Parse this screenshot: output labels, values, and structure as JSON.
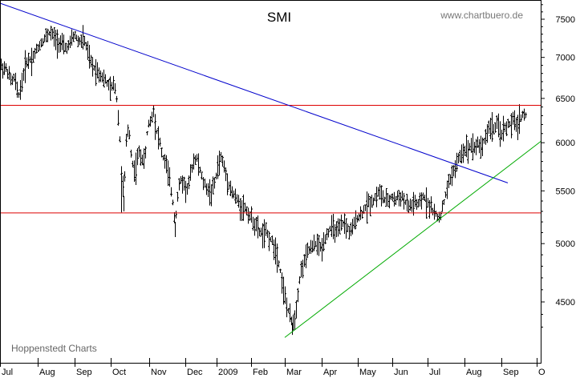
{
  "chart_data": {
    "type": "ohlc",
    "title": "SMI",
    "source_label": "www.chartbuero.de",
    "credit": "Hoppenstedt Charts",
    "y_scale": "log",
    "y_ticks": [
      4500,
      5000,
      5500,
      6000,
      6500,
      7000,
      7500
    ],
    "x_ticks": [
      "Jul",
      "Aug",
      "Sep",
      "Oct",
      "Nov",
      "Dec",
      "2009",
      "Feb",
      "Mar",
      "Apr",
      "May",
      "Jun",
      "Jul",
      "Aug",
      "Sep",
      "O"
    ],
    "grid": false,
    "colors": {
      "price": "#000000",
      "resistance": "#dd0000",
      "downtrend": "#0000cc",
      "uptrend": "#00aa00",
      "background": "#ffffff"
    },
    "horizontal_lines": [
      {
        "name": "upper-support",
        "value": 6420
      },
      {
        "name": "lower-support",
        "value": 5285
      }
    ],
    "trendlines": [
      {
        "name": "downtrend",
        "from": {
          "x": 0,
          "y": 7720
        },
        "to": {
          "x": 633,
          "y": 5580
        }
      },
      {
        "name": "uptrend",
        "from": {
          "x": 355,
          "y": 4220
        },
        "to": {
          "x": 675,
          "y": 6020
        }
      }
    ],
    "price_path": [
      [
        0,
        6900
      ],
      [
        8,
        6850
      ],
      [
        14,
        6700
      ],
      [
        18,
        6750
      ],
      [
        22,
        6520
      ],
      [
        26,
        6650
      ],
      [
        32,
        6950
      ],
      [
        40,
        7000
      ],
      [
        48,
        7150
      ],
      [
        55,
        7250
      ],
      [
        62,
        7330
      ],
      [
        68,
        7250
      ],
      [
        74,
        7200
      ],
      [
        80,
        7120
      ],
      [
        86,
        7150
      ],
      [
        92,
        7300
      ],
      [
        98,
        7200
      ],
      [
        104,
        7250
      ],
      [
        108,
        7100
      ],
      [
        114,
        6900
      ],
      [
        120,
        6850
      ],
      [
        126,
        6780
      ],
      [
        132,
        6700
      ],
      [
        138,
        6600
      ],
      [
        142,
        6700
      ],
      [
        145,
        6500
      ],
      [
        148,
        6200
      ],
      [
        151,
        5700
      ],
      [
        154,
        5450
      ],
      [
        157,
        6000
      ],
      [
        160,
        6200
      ],
      [
        164,
        5800
      ],
      [
        168,
        5700
      ],
      [
        172,
        5900
      ],
      [
        176,
        5850
      ],
      [
        180,
        5800
      ],
      [
        184,
        6200
      ],
      [
        188,
        6250
      ],
      [
        191,
        6380
      ],
      [
        194,
        6150
      ],
      [
        198,
        6050
      ],
      [
        202,
        5850
      ],
      [
        206,
        5800
      ],
      [
        210,
        5650
      ],
      [
        214,
        5450
      ],
      [
        218,
        5200
      ],
      [
        221,
        5450
      ],
      [
        224,
        5600
      ],
      [
        228,
        5600
      ],
      [
        232,
        5500
      ],
      [
        236,
        5600
      ],
      [
        240,
        5800
      ],
      [
        244,
        5850
      ],
      [
        248,
        5750
      ],
      [
        252,
        5600
      ],
      [
        256,
        5550
      ],
      [
        260,
        5500
      ],
      [
        264,
        5500
      ],
      [
        268,
        5600
      ],
      [
        272,
        5800
      ],
      [
        276,
        5850
      ],
      [
        280,
        5700
      ],
      [
        284,
        5600
      ],
      [
        288,
        5500
      ],
      [
        292,
        5450
      ],
      [
        296,
        5400
      ],
      [
        300,
        5350
      ],
      [
        304,
        5350
      ],
      [
        308,
        5300
      ],
      [
        312,
        5250
      ],
      [
        316,
        5200
      ],
      [
        320,
        5150
      ],
      [
        324,
        5100
      ],
      [
        328,
        5100
      ],
      [
        332,
        5100
      ],
      [
        336,
        5050
      ],
      [
        340,
        5000
      ],
      [
        344,
        4950
      ],
      [
        348,
        4800
      ],
      [
        352,
        4650
      ],
      [
        356,
        4500
      ],
      [
        360,
        4400
      ],
      [
        364,
        4330
      ],
      [
        368,
        4400
      ],
      [
        372,
        4650
      ],
      [
        376,
        4800
      ],
      [
        380,
        4850
      ],
      [
        384,
        4950
      ],
      [
        388,
        4950
      ],
      [
        392,
        5000
      ],
      [
        396,
        5000
      ],
      [
        400,
        4950
      ],
      [
        404,
        5050
      ],
      [
        408,
        5100
      ],
      [
        412,
        5150
      ],
      [
        416,
        5150
      ],
      [
        420,
        5100
      ],
      [
        424,
        5150
      ],
      [
        428,
        5200
      ],
      [
        432,
        5150
      ],
      [
        436,
        5100
      ],
      [
        440,
        5150
      ],
      [
        444,
        5250
      ],
      [
        448,
        5250
      ],
      [
        452,
        5300
      ],
      [
        456,
        5350
      ],
      [
        460,
        5400
      ],
      [
        464,
        5400
      ],
      [
        468,
        5450
      ],
      [
        472,
        5500
      ],
      [
        476,
        5450
      ],
      [
        480,
        5400
      ],
      [
        484,
        5400
      ],
      [
        488,
        5450
      ],
      [
        492,
        5400
      ],
      [
        496,
        5450
      ],
      [
        500,
        5450
      ],
      [
        504,
        5400
      ],
      [
        508,
        5350
      ],
      [
        512,
        5350
      ],
      [
        516,
        5400
      ],
      [
        520,
        5350
      ],
      [
        524,
        5400
      ],
      [
        528,
        5450
      ],
      [
        532,
        5400
      ],
      [
        536,
        5350
      ],
      [
        540,
        5300
      ],
      [
        544,
        5250
      ],
      [
        548,
        5250
      ],
      [
        552,
        5350
      ],
      [
        556,
        5500
      ],
      [
        560,
        5600
      ],
      [
        564,
        5700
      ],
      [
        568,
        5750
      ],
      [
        572,
        5850
      ],
      [
        576,
        5900
      ],
      [
        580,
        5950
      ],
      [
        584,
        5950
      ],
      [
        588,
        6000
      ],
      [
        592,
        5950
      ],
      [
        596,
        6000
      ],
      [
        600,
        5950
      ],
      [
        604,
        6050
      ],
      [
        608,
        6150
      ],
      [
        612,
        6200
      ],
      [
        616,
        6150
      ],
      [
        620,
        6200
      ],
      [
        624,
        6100
      ],
      [
        628,
        6150
      ],
      [
        632,
        6200
      ],
      [
        636,
        6200
      ],
      [
        640,
        6250
      ],
      [
        644,
        6200
      ],
      [
        648,
        6280
      ],
      [
        652,
        6320
      ],
      [
        655,
        6300
      ]
    ]
  }
}
